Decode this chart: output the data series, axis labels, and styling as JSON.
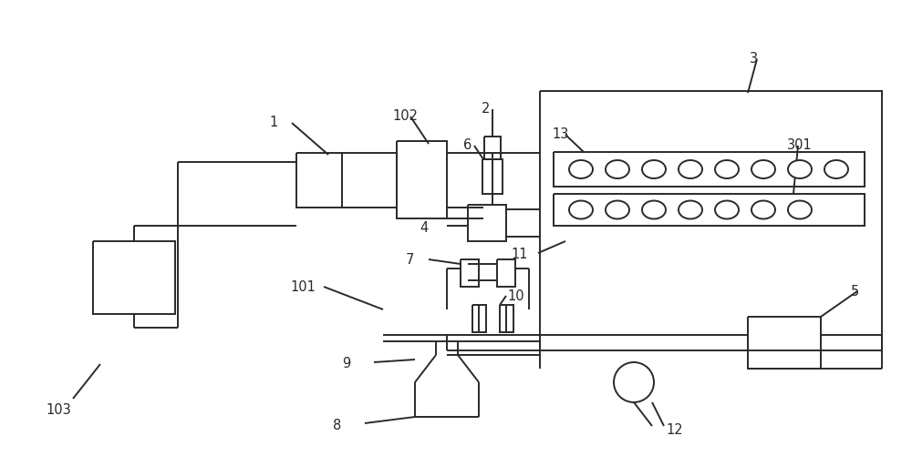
{
  "bg_color": "#ffffff",
  "line_color": "#2a2a2a",
  "lw": 1.4,
  "figsize": [
    10.0,
    5.01
  ],
  "dpi": 100
}
